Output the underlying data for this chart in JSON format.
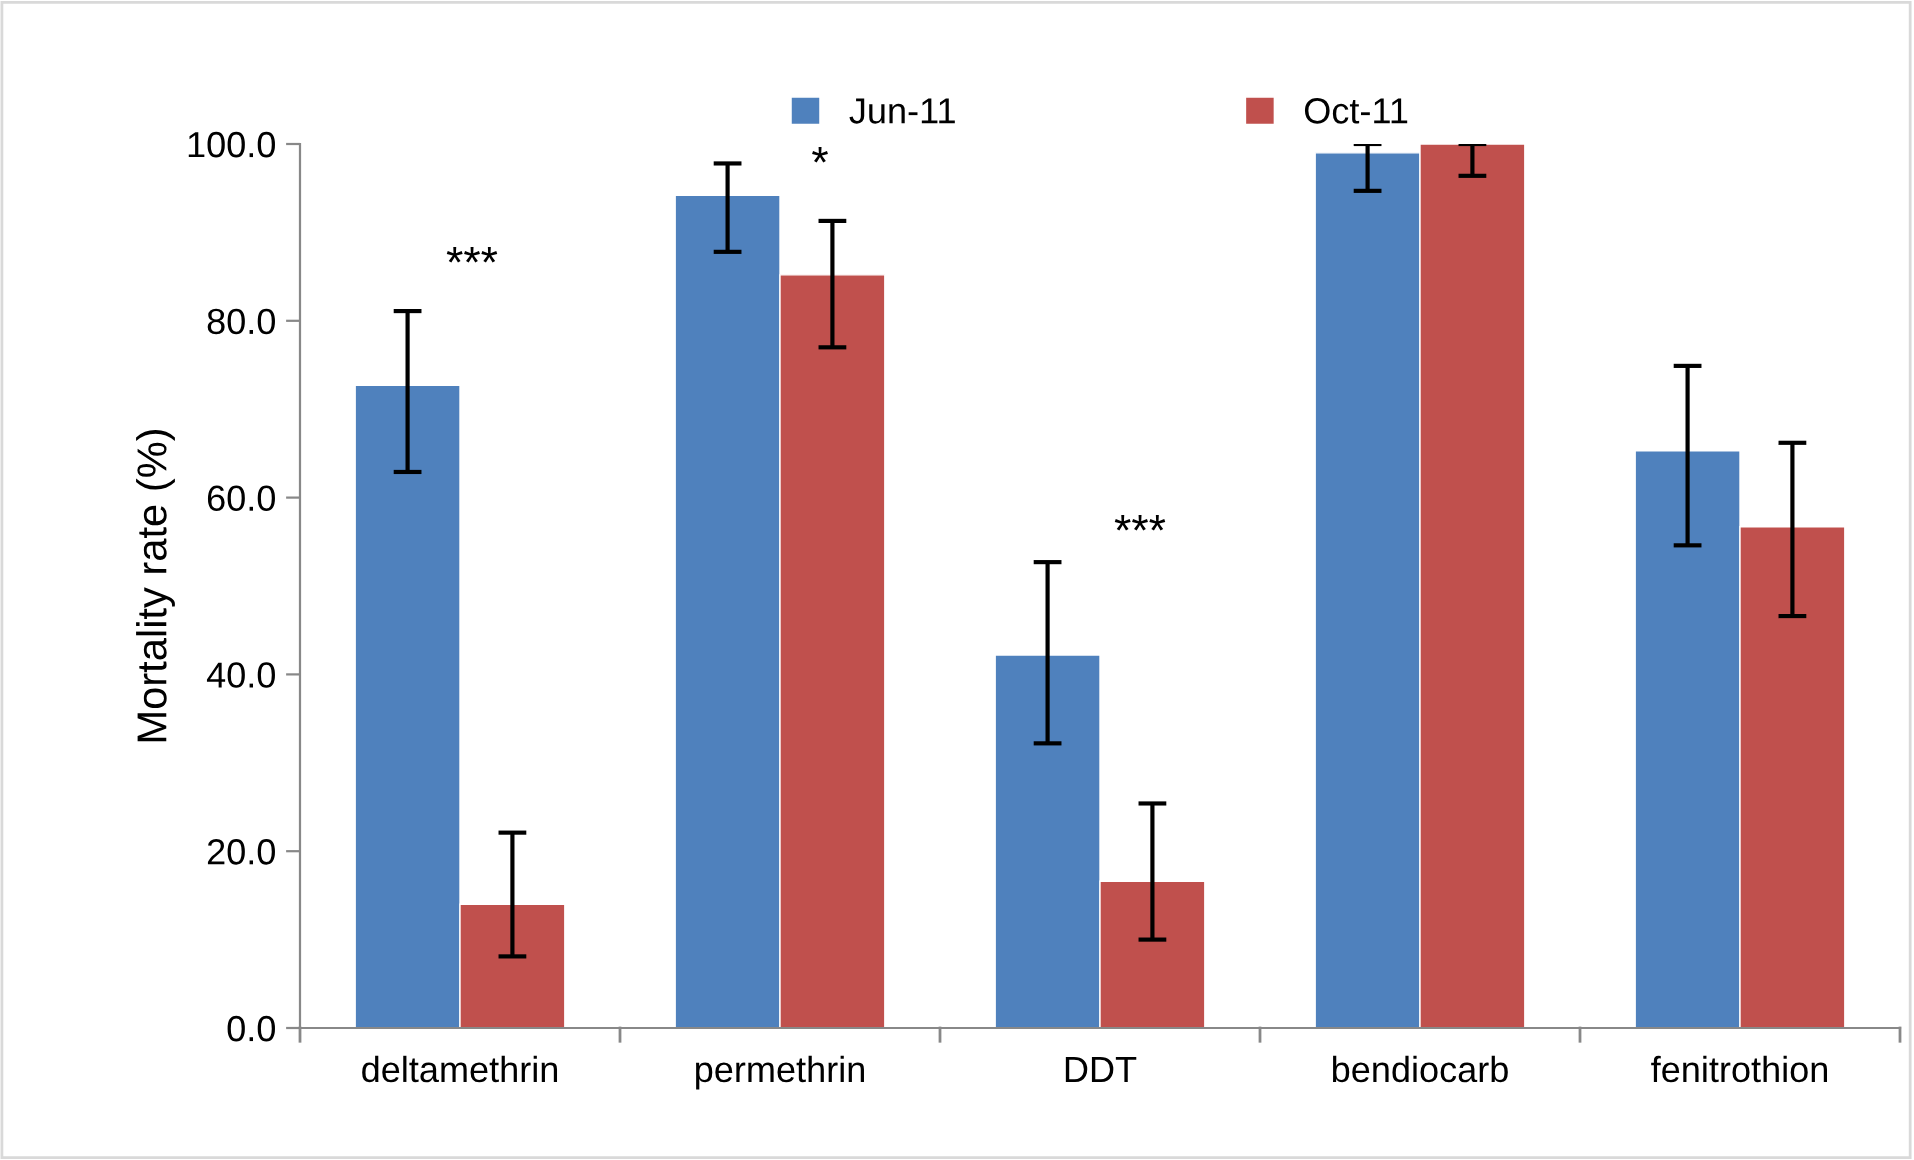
{
  "chart_data": {
    "type": "bar",
    "ylabel": "Mortality rate (%)",
    "categories": [
      "deltamethrin",
      "permethrin",
      "DDT",
      "bendiocarb",
      "fenitrothion"
    ],
    "series": [
      {
        "name": "Jun-11",
        "color": "#4f81bd",
        "values": [
          72.7,
          94.2,
          42.2,
          99.0,
          65.3
        ],
        "errors": [
          [
            62.9,
            81.1
          ],
          [
            87.8,
            97.8
          ],
          [
            32.2,
            52.7
          ],
          [
            94.7,
            100.0
          ],
          [
            54.6,
            74.9
          ]
        ]
      },
      {
        "name": "Oct-11",
        "color": "#c0504d",
        "values": [
          14.0,
          85.2,
          16.6,
          100.0,
          56.7
        ],
        "errors": [
          [
            8.1,
            22.1
          ],
          [
            77.0,
            91.3
          ],
          [
            10.0,
            25.4
          ],
          [
            96.4,
            100.0
          ],
          [
            46.6,
            66.2
          ]
        ]
      }
    ],
    "ylim": [
      0,
      100
    ],
    "yticks": [
      {
        "value": 0,
        "label": "0.0"
      },
      {
        "value": 20,
        "label": "20.0"
      },
      {
        "value": 40,
        "label": "40.0"
      },
      {
        "value": 60,
        "label": "60.0"
      },
      {
        "value": 80,
        "label": "80.0"
      },
      {
        "value": 100,
        "label": "100.0"
      }
    ],
    "annotations": [
      "***",
      "*",
      "***"
    ],
    "legend": "top",
    "grid": false
  }
}
